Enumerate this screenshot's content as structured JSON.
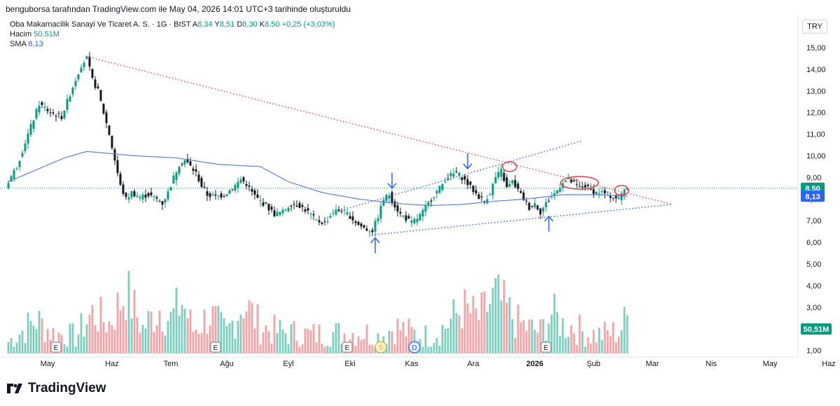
{
  "header": {
    "attribution": "benguborsa tarafından TradingView.com ile May 04, 2026 14:01 UTC+3 tarihinde oluşturuldu"
  },
  "legend": {
    "symbol": "Oba Makarnacilik Sanayi Ve Ticaret A. S. · 1G · BIST",
    "open_label": "A",
    "open": "8,34",
    "high_label": "Y",
    "high": "8,51",
    "low_label": "D",
    "low": "8,30",
    "close_label": "K",
    "close": "8,50",
    "change": "+0,25 (+3,03%)",
    "volume_label": "Hacim",
    "volume": "50,51M",
    "sma_label": "SMA",
    "sma": "8,13"
  },
  "currency": "TRY",
  "brand": "TradingView",
  "colors": {
    "up": "#089981",
    "down": "#131722",
    "vol_up": "#7fcdbf",
    "vol_down": "#f3a3a6",
    "sma": "#5b83d8",
    "resistance": "#e0474c",
    "support": "#2962ff",
    "markers": "#2962ff",
    "circles": "#e0474c"
  },
  "chart_data": {
    "type": "candlestick",
    "x_tick_labels": [
      "May",
      "Haz",
      "Tem",
      "Ağu",
      "Eyl",
      "Eki",
      "Kas",
      "Ara",
      "2026",
      "Şub",
      "Mar",
      "Nis",
      "May",
      "Haz"
    ],
    "y_tick_labels": [
      "1,00",
      "2,00",
      "3,00",
      "4,00",
      "5,00",
      "6,00",
      "7,00",
      "8,00",
      "9,00",
      "10,00",
      "11,00",
      "12,00",
      "13,00",
      "14,00",
      "15,00"
    ],
    "y_range": [
      1.0,
      15.0
    ],
    "price_labels": [
      {
        "label": "8,50",
        "value": 8.5,
        "color": "#089981"
      },
      {
        "label": "8,13",
        "value": 8.13,
        "color": "#2962ff"
      }
    ],
    "volume_label": {
      "label": "50,51M",
      "value": 50.51,
      "color": "#089981"
    },
    "price_path": [
      [
        0,
        8.6
      ],
      [
        4,
        9.5
      ],
      [
        8,
        11.0
      ],
      [
        12,
        12.4
      ],
      [
        16,
        12.0
      ],
      [
        20,
        11.8
      ],
      [
        24,
        13.2
      ],
      [
        27,
        14.2
      ],
      [
        29,
        14.5
      ],
      [
        31,
        13.5
      ],
      [
        33,
        13.0
      ],
      [
        35,
        12.0
      ],
      [
        37,
        11.0
      ],
      [
        39,
        9.8
      ],
      [
        41,
        8.6
      ],
      [
        43,
        8.0
      ],
      [
        45,
        8.3
      ],
      [
        48,
        8.1
      ],
      [
        51,
        8.2
      ],
      [
        54,
        8.0
      ],
      [
        56,
        7.8
      ],
      [
        58,
        8.3
      ],
      [
        60,
        9.0
      ],
      [
        62,
        9.6
      ],
      [
        64,
        9.8
      ],
      [
        66,
        9.5
      ],
      [
        68,
        9.2
      ],
      [
        70,
        8.6
      ],
      [
        72,
        8.2
      ],
      [
        75,
        8.1
      ],
      [
        78,
        8.2
      ],
      [
        81,
        8.5
      ],
      [
        84,
        8.9
      ],
      [
        86,
        8.7
      ],
      [
        88,
        8.3
      ],
      [
        90,
        8.0
      ],
      [
        93,
        7.7
      ],
      [
        96,
        7.3
      ],
      [
        99,
        7.4
      ],
      [
        102,
        7.8
      ],
      [
        105,
        7.7
      ],
      [
        108,
        7.4
      ],
      [
        111,
        7.0
      ],
      [
        114,
        6.9
      ],
      [
        117,
        7.4
      ],
      [
        120,
        7.5
      ],
      [
        123,
        7.2
      ],
      [
        126,
        6.8
      ],
      [
        129,
        6.6
      ],
      [
        131,
        6.55
      ],
      [
        133,
        7.2
      ],
      [
        135,
        8.0
      ],
      [
        137,
        8.2
      ],
      [
        139,
        7.7
      ],
      [
        141,
        7.3
      ],
      [
        143,
        7.1
      ],
      [
        145,
        6.9
      ],
      [
        147,
        7.1
      ],
      [
        149,
        7.4
      ],
      [
        151,
        7.8
      ],
      [
        153,
        8.2
      ],
      [
        155,
        8.5
      ],
      [
        157,
        8.9
      ],
      [
        159,
        9.1
      ],
      [
        161,
        9.2
      ],
      [
        163,
        9.0
      ],
      [
        165,
        8.7
      ],
      [
        167,
        8.4
      ],
      [
        169,
        8.1
      ],
      [
        171,
        7.9
      ],
      [
        173,
        8.3
      ],
      [
        175,
        9.0
      ],
      [
        177,
        9.3
      ],
      [
        179,
        8.5
      ],
      [
        181,
        8.8
      ],
      [
        183,
        8.4
      ],
      [
        185,
        8.0
      ],
      [
        187,
        7.6
      ],
      [
        189,
        7.8
      ],
      [
        191,
        7.4
      ],
      [
        193,
        7.8
      ],
      [
        195,
        8.1
      ],
      [
        197,
        8.4
      ],
      [
        199,
        8.8
      ],
      [
        201,
        8.9
      ],
      [
        203,
        8.7
      ],
      [
        205,
        8.5
      ],
      [
        207,
        8.6
      ],
      [
        209,
        8.4
      ],
      [
        211,
        8.3
      ],
      [
        213,
        8.3
      ],
      [
        215,
        8.2
      ],
      [
        217,
        8.1
      ],
      [
        219,
        8.0
      ],
      [
        220,
        8.25
      ],
      [
        221,
        8.5
      ]
    ],
    "volume_path": [
      [
        0,
        1.5
      ],
      [
        10,
        2.8
      ],
      [
        16,
        2.0
      ],
      [
        24,
        1.8
      ],
      [
        30,
        3.2
      ],
      [
        36,
        2.6
      ],
      [
        42,
        4.5
      ],
      [
        48,
        2.3
      ],
      [
        54,
        3.5
      ],
      [
        58,
        2.8
      ],
      [
        62,
        3.9
      ],
      [
        66,
        2.2
      ],
      [
        72,
        3.1
      ],
      [
        78,
        2.0
      ],
      [
        84,
        3.9
      ],
      [
        90,
        2.4
      ],
      [
        96,
        2.1
      ],
      [
        102,
        2.0
      ],
      [
        108,
        1.9
      ],
      [
        114,
        2.0
      ],
      [
        120,
        2.0
      ],
      [
        126,
        2.1
      ],
      [
        132,
        1.8
      ],
      [
        138,
        2.4
      ],
      [
        144,
        2.0
      ],
      [
        150,
        1.8
      ],
      [
        156,
        2.4
      ],
      [
        162,
        3.5
      ],
      [
        168,
        2.9
      ],
      [
        174,
        4.2
      ],
      [
        178,
        3.4
      ],
      [
        182,
        2.6
      ],
      [
        186,
        2.3
      ],
      [
        190,
        2.1
      ],
      [
        194,
        3.2
      ],
      [
        198,
        2.5
      ],
      [
        202,
        2.4
      ],
      [
        206,
        2.0
      ],
      [
        210,
        1.9
      ],
      [
        214,
        2.0
      ],
      [
        218,
        2.1
      ],
      [
        221,
        2.9
      ]
    ],
    "sma": [
      [
        0,
        8.8
      ],
      [
        20,
        9.9
      ],
      [
        28,
        10.2
      ],
      [
        45,
        10.0
      ],
      [
        60,
        9.9
      ],
      [
        75,
        9.6
      ],
      [
        90,
        9.5
      ],
      [
        100,
        8.8
      ],
      [
        112,
        8.3
      ],
      [
        125,
        8.0
      ],
      [
        138,
        7.8
      ],
      [
        150,
        7.7
      ],
      [
        162,
        7.75
      ],
      [
        174,
        7.9
      ],
      [
        185,
        8.0
      ],
      [
        198,
        8.2
      ],
      [
        210,
        8.2
      ],
      [
        221,
        8.13
      ]
    ],
    "trendlines": [
      {
        "name": "resistance",
        "from": [
          29,
          14.55
        ],
        "to": [
          237,
          7.75
        ],
        "color": "#e0474c"
      },
      {
        "name": "support",
        "from": [
          131,
          6.35
        ],
        "to": [
          237,
          7.75
        ],
        "color": "#2962ff"
      },
      {
        "name": "upper-channel",
        "from": [
          122,
          7.6
        ],
        "to": [
          205,
          10.7
        ],
        "color": "#2962ff"
      }
    ],
    "arrows": [
      {
        "dir": "up",
        "bar": 131,
        "value": 6.2
      },
      {
        "dir": "down",
        "bar": 137,
        "value": 8.5
      },
      {
        "dir": "down",
        "bar": 164,
        "value": 9.4
      },
      {
        "dir": "up",
        "bar": 193,
        "value": 7.2
      }
    ],
    "circles": [
      {
        "bar": 179,
        "value": 9.5
      },
      {
        "bar": 204,
        "value": 8.75
      },
      {
        "bar": 219,
        "value": 8.4
      }
    ],
    "event_badges": [
      {
        "label": "E",
        "bar": 17,
        "type": "earnings"
      },
      {
        "label": "E",
        "bar": 74,
        "type": "earnings"
      },
      {
        "label": "E",
        "bar": 121,
        "type": "earnings"
      },
      {
        "label": "S",
        "bar": 133,
        "type": "split"
      },
      {
        "label": "D",
        "bar": 145,
        "type": "dividend"
      },
      {
        "label": "E",
        "bar": 192,
        "type": "earnings"
      }
    ],
    "month_tick_bars": [
      [
        0,
        "May"
      ],
      [
        23,
        "Haz"
      ],
      [
        44,
        "Tem"
      ],
      [
        64,
        "Ağu"
      ],
      [
        86,
        "Eyl"
      ],
      [
        108,
        "Eki"
      ],
      [
        130,
        "Kas"
      ],
      [
        152,
        "Ara"
      ],
      [
        174,
        "2026"
      ],
      [
        195,
        "Şub"
      ],
      [
        216,
        "Mar"
      ],
      [
        237,
        "Nis"
      ],
      [
        258,
        "May"
      ],
      [
        279,
        "Haz"
      ]
    ]
  }
}
